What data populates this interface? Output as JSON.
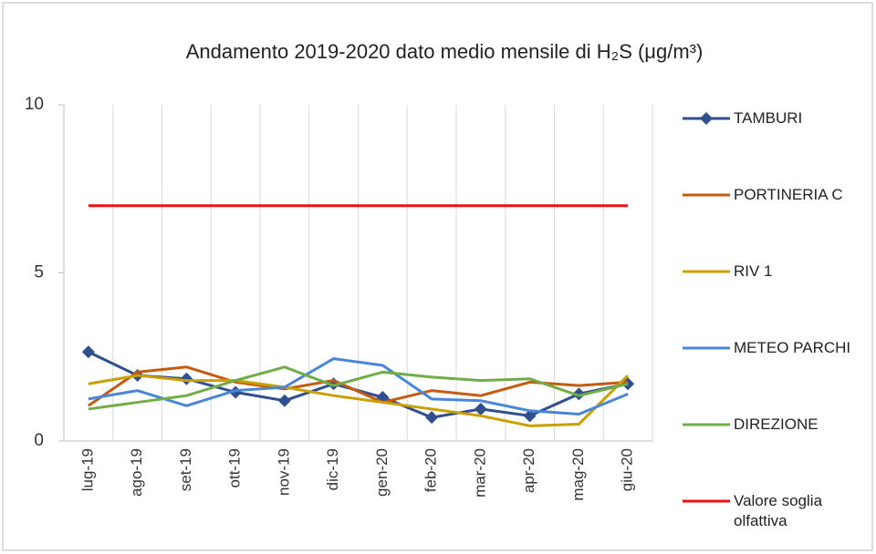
{
  "chart_data": {
    "type": "line",
    "title": "Andamento 2019-2020 dato medio mensile di H₂S (μg/m³)",
    "categories": [
      "lug-19",
      "ago-19",
      "set-19",
      "ott-19",
      "nov-19",
      "dic-19",
      "gen-20",
      "feb-20",
      "mar-20",
      "apr-20",
      "mag-20",
      "giu-20"
    ],
    "series": [
      {
        "name": "TAMBURI",
        "color": "#2f4f8f",
        "marker": "diamond",
        "values": [
          2.65,
          1.95,
          1.85,
          1.45,
          1.2,
          1.7,
          1.3,
          0.7,
          0.95,
          0.75,
          1.4,
          1.7
        ]
      },
      {
        "name": "PORTINERIA C",
        "color": "#c55a11",
        "values": [
          1.05,
          2.05,
          2.2,
          1.75,
          1.55,
          1.8,
          1.15,
          1.5,
          1.35,
          1.75,
          1.65,
          1.75
        ]
      },
      {
        "name": "RIV 1",
        "color": "#c9a000",
        "values": [
          1.7,
          1.95,
          1.8,
          1.8,
          1.6,
          1.35,
          1.15,
          0.95,
          0.75,
          0.45,
          0.5,
          1.95
        ]
      },
      {
        "name": "METEO PARCHI",
        "color": "#4a86d8",
        "values": [
          1.25,
          1.5,
          1.05,
          1.5,
          1.6,
          2.45,
          2.25,
          1.25,
          1.2,
          0.9,
          0.8,
          1.4
        ]
      },
      {
        "name": "DIREZIONE",
        "color": "#70ad47",
        "values": [
          0.95,
          1.15,
          1.35,
          1.8,
          2.2,
          1.65,
          2.05,
          1.9,
          1.8,
          1.85,
          1.35,
          1.7
        ]
      },
      {
        "name": "Valore soglia olfattiva",
        "color": "#ee1111",
        "values": [
          7,
          7,
          7,
          7,
          7,
          7,
          7,
          7,
          7,
          7,
          7,
          7
        ]
      }
    ],
    "ylim": [
      0,
      10
    ],
    "yticks": [
      0,
      5,
      10
    ],
    "grid": "vertical",
    "legend": "right"
  }
}
